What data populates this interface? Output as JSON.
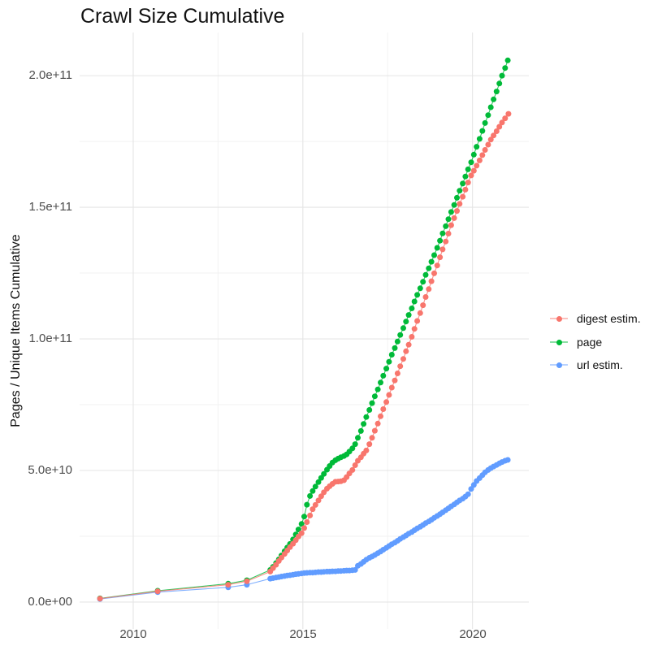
{
  "title": "Crawl Size Cumulative",
  "y_axis_label": "Pages / Unique Items Cumulative",
  "legend": {
    "items": [
      {
        "label": "digest estim.",
        "color": "#F8766D"
      },
      {
        "label": "page",
        "color": "#00BA38"
      },
      {
        "label": "url estim.",
        "color": "#619CFF"
      }
    ]
  },
  "chart_data": {
    "type": "scatter",
    "title": "Crawl Size Cumulative",
    "xlabel": "",
    "ylabel": "Pages / Unique Items Cumulative",
    "legend_position": "right",
    "grid": "major and minor, light gray on white",
    "unit_note": "point values stored in billions (1e9); y axis shows scientific notation",
    "xlim": [
      2008.42,
      2021.66
    ],
    "ylim_1e9": [
      -10.2,
      216.4
    ],
    "x_axis": {
      "tick_values": [
        2010,
        2015,
        2020
      ],
      "tick_labels": [
        "2010",
        "2015",
        "2020"
      ],
      "minor_values": [
        2012.5,
        2017.5
      ]
    },
    "y_axis": {
      "tick_values_1e9": [
        0,
        50,
        100,
        150,
        200
      ],
      "tick_labels": [
        "0.0e+00",
        "5.0e+10",
        "1.0e+11",
        "1.5e+11",
        "2.0e+11"
      ],
      "minor_values_1e9": [
        25,
        75,
        125,
        175
      ]
    },
    "draw_order": [
      "page",
      "url estim.",
      "digest estim."
    ],
    "series": [
      {
        "name": "digest estim.",
        "color": "#F8766D",
        "points_year_value1e9": [
          [
            2009.02,
            1.3
          ],
          [
            2010.72,
            4.1
          ],
          [
            2012.8,
            6.6
          ],
          [
            2013.35,
            7.9
          ],
          [
            2014.04,
            11.6
          ],
          [
            2014.12,
            12.9
          ],
          [
            2014.21,
            14.2
          ],
          [
            2014.29,
            15.6
          ],
          [
            2014.37,
            16.9
          ],
          [
            2014.46,
            18.3
          ],
          [
            2014.54,
            19.6
          ],
          [
            2014.62,
            20.9
          ],
          [
            2014.71,
            22.2
          ],
          [
            2014.79,
            23.5
          ],
          [
            2014.87,
            24.9
          ],
          [
            2014.96,
            26.2
          ],
          [
            2015.04,
            28.1
          ],
          [
            2015.12,
            30.4
          ],
          [
            2015.21,
            32.9
          ],
          [
            2015.29,
            35.3
          ],
          [
            2015.37,
            36.9
          ],
          [
            2015.46,
            38.6
          ],
          [
            2015.54,
            40.2
          ],
          [
            2015.62,
            41.7
          ],
          [
            2015.71,
            43.1
          ],
          [
            2015.79,
            44.0
          ],
          [
            2015.87,
            44.9
          ],
          [
            2015.96,
            45.7
          ],
          [
            2016.04,
            45.8
          ],
          [
            2016.12,
            45.9
          ],
          [
            2016.21,
            46.3
          ],
          [
            2016.29,
            47.5
          ],
          [
            2016.37,
            48.9
          ],
          [
            2016.46,
            50.2
          ],
          [
            2016.54,
            52.0
          ],
          [
            2016.62,
            53.7
          ],
          [
            2016.71,
            55.0
          ],
          [
            2016.79,
            56.4
          ],
          [
            2016.87,
            57.6
          ],
          [
            2016.96,
            60.0
          ],
          [
            2017.04,
            62.4
          ],
          [
            2017.12,
            65.1
          ],
          [
            2017.21,
            67.8
          ],
          [
            2017.29,
            70.6
          ],
          [
            2017.37,
            73.3
          ],
          [
            2017.46,
            76.0
          ],
          [
            2017.54,
            78.7
          ],
          [
            2017.62,
            81.5
          ],
          [
            2017.71,
            84.2
          ],
          [
            2017.79,
            86.9
          ],
          [
            2017.87,
            89.6
          ],
          [
            2017.96,
            92.4
          ],
          [
            2018.04,
            95.3
          ],
          [
            2018.12,
            97.8
          ],
          [
            2018.21,
            100.8
          ],
          [
            2018.29,
            103.8
          ],
          [
            2018.37,
            106.8
          ],
          [
            2018.46,
            109.8
          ],
          [
            2018.54,
            112.8
          ],
          [
            2018.62,
            115.9
          ],
          [
            2018.71,
            118.9
          ],
          [
            2018.79,
            121.9
          ],
          [
            2018.87,
            124.9
          ],
          [
            2018.96,
            127.9
          ],
          [
            2019.04,
            131.0
          ],
          [
            2019.12,
            134.0
          ],
          [
            2019.21,
            137.0
          ],
          [
            2019.29,
            140.0
          ],
          [
            2019.37,
            143.2
          ],
          [
            2019.46,
            145.9
          ],
          [
            2019.54,
            148.6
          ],
          [
            2019.62,
            151.3
          ],
          [
            2019.71,
            154.0
          ],
          [
            2019.79,
            156.7
          ],
          [
            2019.87,
            159.4
          ],
          [
            2019.96,
            162.1
          ],
          [
            2020.04,
            163.9
          ],
          [
            2020.12,
            165.8
          ],
          [
            2020.21,
            167.8
          ],
          [
            2020.29,
            169.8
          ],
          [
            2020.37,
            171.8
          ],
          [
            2020.46,
            173.8
          ],
          [
            2020.54,
            175.7
          ],
          [
            2020.62,
            177.3
          ],
          [
            2020.71,
            178.9
          ],
          [
            2020.79,
            180.6
          ],
          [
            2020.87,
            182.2
          ],
          [
            2020.96,
            183.8
          ],
          [
            2021.06,
            185.5
          ]
        ]
      },
      {
        "name": "page",
        "color": "#00BA38",
        "points_year_value1e9": [
          [
            2009.02,
            1.4
          ],
          [
            2010.72,
            4.3
          ],
          [
            2012.8,
            7.0
          ],
          [
            2013.35,
            8.3
          ],
          [
            2014.04,
            12.2
          ],
          [
            2014.12,
            13.4
          ],
          [
            2014.21,
            14.8
          ],
          [
            2014.29,
            16.2
          ],
          [
            2014.37,
            17.7
          ],
          [
            2014.46,
            19.3
          ],
          [
            2014.54,
            20.7
          ],
          [
            2014.62,
            22.1
          ],
          [
            2014.71,
            23.8
          ],
          [
            2014.79,
            25.7
          ],
          [
            2014.87,
            27.6
          ],
          [
            2014.96,
            29.7
          ],
          [
            2015.04,
            32.5
          ],
          [
            2015.12,
            37.0
          ],
          [
            2015.21,
            40.3
          ],
          [
            2015.29,
            42.2
          ],
          [
            2015.37,
            43.9
          ],
          [
            2015.46,
            45.6
          ],
          [
            2015.54,
            47.2
          ],
          [
            2015.62,
            48.7
          ],
          [
            2015.71,
            50.3
          ],
          [
            2015.79,
            51.7
          ],
          [
            2015.87,
            53.0
          ],
          [
            2015.96,
            53.9
          ],
          [
            2016.04,
            54.5
          ],
          [
            2016.12,
            55.0
          ],
          [
            2016.21,
            55.5
          ],
          [
            2016.29,
            56.1
          ],
          [
            2016.37,
            57.2
          ],
          [
            2016.46,
            58.4
          ],
          [
            2016.54,
            60.0
          ],
          [
            2016.62,
            62.4
          ],
          [
            2016.71,
            65.0
          ],
          [
            2016.79,
            67.7
          ],
          [
            2016.87,
            70.3
          ],
          [
            2016.96,
            73.0
          ],
          [
            2017.04,
            75.6
          ],
          [
            2017.12,
            78.2
          ],
          [
            2017.21,
            80.8
          ],
          [
            2017.29,
            83.4
          ],
          [
            2017.37,
            86.0
          ],
          [
            2017.46,
            88.7
          ],
          [
            2017.54,
            91.3
          ],
          [
            2017.62,
            94.0
          ],
          [
            2017.71,
            96.5
          ],
          [
            2017.79,
            99.0
          ],
          [
            2017.87,
            101.5
          ],
          [
            2017.96,
            104.1
          ],
          [
            2018.04,
            106.6
          ],
          [
            2018.12,
            109.1
          ],
          [
            2018.21,
            111.6
          ],
          [
            2018.29,
            114.2
          ],
          [
            2018.37,
            116.7
          ],
          [
            2018.46,
            119.2
          ],
          [
            2018.54,
            121.7
          ],
          [
            2018.62,
            124.3
          ],
          [
            2018.71,
            126.8
          ],
          [
            2018.79,
            129.3
          ],
          [
            2018.87,
            131.8
          ],
          [
            2018.96,
            134.6
          ],
          [
            2019.04,
            137.3
          ],
          [
            2019.12,
            140.1
          ],
          [
            2019.21,
            142.8
          ],
          [
            2019.29,
            145.5
          ],
          [
            2019.37,
            148.2
          ],
          [
            2019.46,
            150.9
          ],
          [
            2019.54,
            153.6
          ],
          [
            2019.62,
            156.3
          ],
          [
            2019.71,
            159.0
          ],
          [
            2019.79,
            161.7
          ],
          [
            2019.87,
            164.4
          ],
          [
            2019.96,
            167.1
          ],
          [
            2020.04,
            170.0
          ],
          [
            2020.12,
            173.0
          ],
          [
            2020.21,
            176.0
          ],
          [
            2020.29,
            179.0
          ],
          [
            2020.37,
            182.0
          ],
          [
            2020.46,
            185.0
          ],
          [
            2020.54,
            188.0
          ],
          [
            2020.62,
            191.0
          ],
          [
            2020.71,
            194.0
          ],
          [
            2020.79,
            197.0
          ],
          [
            2020.87,
            200.0
          ],
          [
            2020.96,
            202.9
          ],
          [
            2021.04,
            205.8
          ]
        ]
      },
      {
        "name": "url estim.",
        "color": "#619CFF",
        "points_year_value1e9": [
          [
            2009.02,
            1.2
          ],
          [
            2010.72,
            3.8
          ],
          [
            2012.8,
            5.6
          ],
          [
            2013.35,
            6.6
          ],
          [
            2014.04,
            8.9
          ],
          [
            2014.12,
            9.1
          ],
          [
            2014.21,
            9.3
          ],
          [
            2014.29,
            9.5
          ],
          [
            2014.37,
            9.7
          ],
          [
            2014.46,
            9.9
          ],
          [
            2014.54,
            10.1
          ],
          [
            2014.62,
            10.2
          ],
          [
            2014.71,
            10.4
          ],
          [
            2014.79,
            10.6
          ],
          [
            2014.87,
            10.7
          ],
          [
            2014.96,
            10.9
          ],
          [
            2015.04,
            11.0
          ],
          [
            2015.12,
            11.1
          ],
          [
            2015.21,
            11.2
          ],
          [
            2015.29,
            11.2
          ],
          [
            2015.37,
            11.3
          ],
          [
            2015.46,
            11.4
          ],
          [
            2015.54,
            11.4
          ],
          [
            2015.62,
            11.5
          ],
          [
            2015.71,
            11.6
          ],
          [
            2015.79,
            11.6
          ],
          [
            2015.87,
            11.7
          ],
          [
            2015.96,
            11.7
          ],
          [
            2016.04,
            11.8
          ],
          [
            2016.12,
            11.8
          ],
          [
            2016.21,
            11.9
          ],
          [
            2016.29,
            12.0
          ],
          [
            2016.37,
            12.0
          ],
          [
            2016.46,
            12.1
          ],
          [
            2016.54,
            12.2
          ],
          [
            2016.62,
            13.8
          ],
          [
            2016.71,
            14.5
          ],
          [
            2016.79,
            15.3
          ],
          [
            2016.87,
            16.1
          ],
          [
            2016.96,
            16.8
          ],
          [
            2017.04,
            17.3
          ],
          [
            2017.12,
            17.9
          ],
          [
            2017.21,
            18.6
          ],
          [
            2017.29,
            19.2
          ],
          [
            2017.37,
            19.9
          ],
          [
            2017.46,
            20.6
          ],
          [
            2017.54,
            21.3
          ],
          [
            2017.62,
            22.0
          ],
          [
            2017.71,
            22.6
          ],
          [
            2017.79,
            23.3
          ],
          [
            2017.87,
            24.0
          ],
          [
            2017.96,
            24.7
          ],
          [
            2018.04,
            25.3
          ],
          [
            2018.12,
            26.0
          ],
          [
            2018.21,
            26.6
          ],
          [
            2018.29,
            27.3
          ],
          [
            2018.37,
            28.0
          ],
          [
            2018.46,
            28.6
          ],
          [
            2018.54,
            29.3
          ],
          [
            2018.62,
            30.0
          ],
          [
            2018.71,
            30.6
          ],
          [
            2018.79,
            31.3
          ],
          [
            2018.87,
            32.0
          ],
          [
            2018.96,
            32.7
          ],
          [
            2019.04,
            33.4
          ],
          [
            2019.12,
            34.1
          ],
          [
            2019.21,
            34.9
          ],
          [
            2019.29,
            35.6
          ],
          [
            2019.37,
            36.4
          ],
          [
            2019.46,
            37.1
          ],
          [
            2019.54,
            37.9
          ],
          [
            2019.62,
            38.6
          ],
          [
            2019.71,
            39.3
          ],
          [
            2019.79,
            40.1
          ],
          [
            2019.87,
            41.0
          ],
          [
            2019.96,
            43.0
          ],
          [
            2020.04,
            44.5
          ],
          [
            2020.12,
            46.0
          ],
          [
            2020.21,
            47.1
          ],
          [
            2020.29,
            48.2
          ],
          [
            2020.37,
            49.3
          ],
          [
            2020.46,
            50.2
          ],
          [
            2020.54,
            50.9
          ],
          [
            2020.62,
            51.5
          ],
          [
            2020.71,
            52.1
          ],
          [
            2020.79,
            52.7
          ],
          [
            2020.87,
            53.2
          ],
          [
            2020.96,
            53.7
          ],
          [
            2021.04,
            54.0
          ]
        ]
      }
    ]
  }
}
